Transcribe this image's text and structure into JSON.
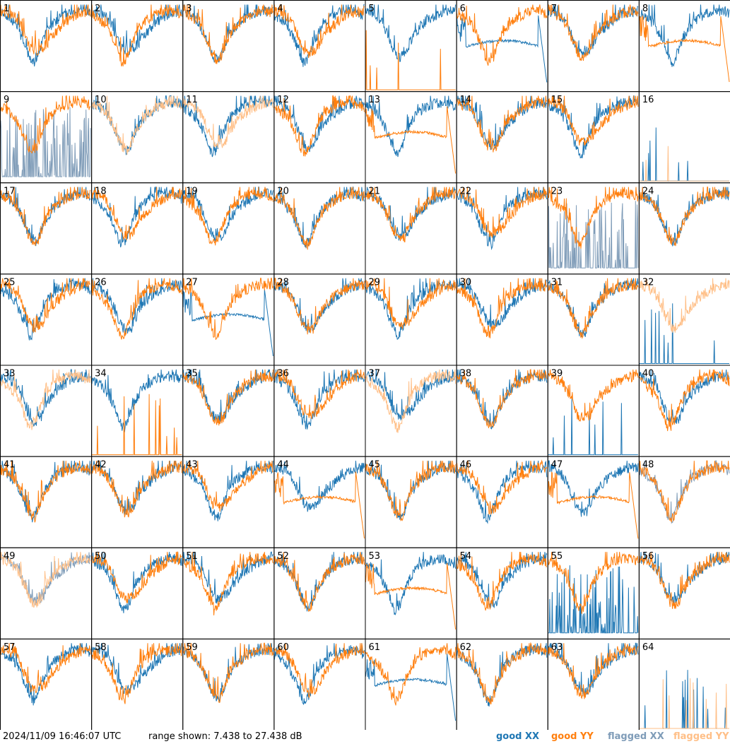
{
  "chart_data": {
    "type": "line",
    "panel_count": 64,
    "panel_labels": [
      "1",
      "2",
      "3",
      "4",
      "5",
      "6",
      "7",
      "8",
      "9",
      "10",
      "11",
      "12",
      "13",
      "14",
      "15",
      "16",
      "17",
      "18",
      "19",
      "20",
      "21",
      "22",
      "23",
      "24",
      "25",
      "26",
      "27",
      "28",
      "29",
      "30",
      "31",
      "32",
      "33",
      "34",
      "35",
      "36",
      "37",
      "38",
      "39",
      "40",
      "41",
      "42",
      "43",
      "44",
      "45",
      "46",
      "47",
      "48",
      "49",
      "50",
      "51",
      "52",
      "53",
      "54",
      "55",
      "56",
      "57",
      "58",
      "59",
      "60",
      "61",
      "62",
      "63",
      "64"
    ],
    "grid_columns": 8,
    "grid_rows": 8,
    "y_range_db": [
      7.438,
      27.438
    ],
    "series": [
      {
        "key": "good_xx",
        "label": "good XX",
        "color": "#1f77b4"
      },
      {
        "key": "good_yy",
        "label": "good YY",
        "color": "#ff7f0e"
      },
      {
        "key": "flagged_xx",
        "label": "flagged XX",
        "color": "#7f9cb8"
      },
      {
        "key": "flagged_yy",
        "label": "flagged YY",
        "color": "#ffbf87"
      }
    ],
    "panel_status": {
      "flagged_xx": [
        9,
        23,
        48,
        49
      ],
      "flagged_yy": [
        10,
        11,
        16,
        32,
        33,
        37,
        49,
        64
      ],
      "xx_dropout": [
        6,
        27,
        61
      ],
      "yy_dropout": [
        8,
        13,
        44,
        47,
        53
      ],
      "xx_sparse_spikes": [
        16,
        32,
        39,
        64
      ],
      "yy_sparse_spikes": [
        5,
        16,
        34,
        64
      ],
      "xx_noisy_low": [
        9,
        23,
        55,
        39
      ]
    }
  },
  "footer": {
    "timestamp": "2024/11/09 16:46:07 UTC",
    "range_text": "range shown: 7.438 to 27.438 dB",
    "legend": [
      {
        "label": "good XX",
        "color": "#1f77b4"
      },
      {
        "label": "good YY",
        "color": "#ff7f0e"
      },
      {
        "label": "flagged XX",
        "color": "#7f9cb8"
      },
      {
        "label": "flagged YY",
        "color": "#ffbf87"
      }
    ]
  }
}
